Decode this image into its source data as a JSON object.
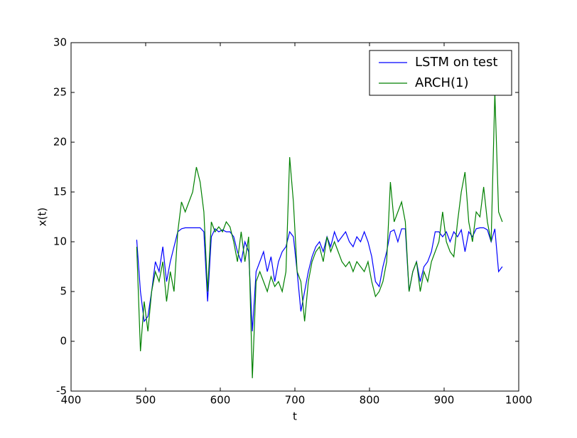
{
  "chart_data": {
    "type": "line",
    "x_label": "t",
    "y_label": "x(t)",
    "x": [
      488,
      493,
      498,
      503,
      508,
      513,
      518,
      523,
      528,
      533,
      538,
      543,
      548,
      553,
      558,
      563,
      568,
      573,
      578,
      583,
      588,
      593,
      598,
      603,
      608,
      613,
      618,
      623,
      628,
      633,
      638,
      643,
      648,
      653,
      658,
      663,
      668,
      673,
      678,
      683,
      688,
      693,
      698,
      703,
      708,
      713,
      718,
      723,
      728,
      733,
      738,
      743,
      748,
      753,
      758,
      763,
      768,
      773,
      778,
      783,
      788,
      793,
      798,
      803,
      808,
      813,
      818,
      823,
      828,
      833,
      838,
      843,
      848,
      853,
      858,
      863,
      868,
      873,
      878,
      883,
      888,
      893,
      898,
      903,
      908,
      913,
      918,
      923,
      928,
      933,
      938,
      943,
      948,
      953,
      958,
      963,
      968,
      973,
      978
    ],
    "series": [
      {
        "name": "LSTM on test",
        "color": "#0000ff",
        "values": [
          10.2,
          5,
          2,
          2.5,
          5,
          8,
          7,
          9.5,
          6,
          8,
          9.5,
          11,
          11.3,
          11.4,
          11.4,
          11.4,
          11.4,
          11.4,
          11,
          4,
          10.5,
          11.3,
          11,
          11.2,
          11,
          11,
          10.5,
          9,
          8,
          10,
          9,
          1,
          7,
          8,
          9,
          7,
          8.5,
          6,
          8,
          9,
          9.5,
          11,
          10.5,
          7,
          3,
          5,
          7,
          8.5,
          9.5,
          10,
          9,
          10.5,
          9.5,
          11,
          10,
          10.5,
          11,
          10,
          9.5,
          10.5,
          10,
          11,
          10,
          8.5,
          6,
          5.5,
          7.5,
          9,
          11,
          11.2,
          10,
          11.3,
          11.3,
          5,
          7,
          8,
          6,
          7.5,
          8,
          9,
          11,
          11,
          10.5,
          11,
          10,
          11,
          10.5,
          11.2,
          9,
          11,
          10.5,
          11.3,
          11.4,
          11.4,
          11.2,
          10,
          11.3,
          7,
          7.5
        ]
      },
      {
        "name": "ARCH(1)",
        "color": "#008000",
        "values": [
          9.5,
          -1,
          4,
          1,
          5,
          7,
          6,
          8,
          4,
          7,
          5,
          11,
          14,
          13,
          14,
          15,
          17.5,
          16,
          13,
          5,
          12,
          11,
          11.5,
          11,
          12,
          11.5,
          10,
          8,
          11,
          8,
          10.5,
          -3.7,
          6,
          7,
          6,
          5,
          6.5,
          5.5,
          6,
          5,
          7,
          18.5,
          14,
          7,
          6,
          2,
          6,
          8,
          9,
          9.5,
          8,
          10.5,
          9,
          10,
          9,
          8,
          7.5,
          8,
          7,
          8,
          7.5,
          7,
          8,
          6,
          4.5,
          5,
          6,
          8,
          16,
          12,
          13,
          14,
          12,
          5,
          7,
          8,
          5,
          7,
          6,
          8,
          9,
          10,
          13,
          10,
          9,
          8.5,
          12,
          15,
          17,
          12,
          10,
          13,
          12.5,
          15.5,
          12,
          10,
          25,
          13,
          12
        ]
      }
    ],
    "xlim": [
      400,
      1000
    ],
    "xticks": [
      400,
      500,
      600,
      700,
      800,
      900,
      1000
    ],
    "ylim": [
      -5,
      30
    ],
    "yticks": [
      -5,
      0,
      5,
      10,
      15,
      20,
      25,
      30
    ],
    "legend": "upper right"
  }
}
